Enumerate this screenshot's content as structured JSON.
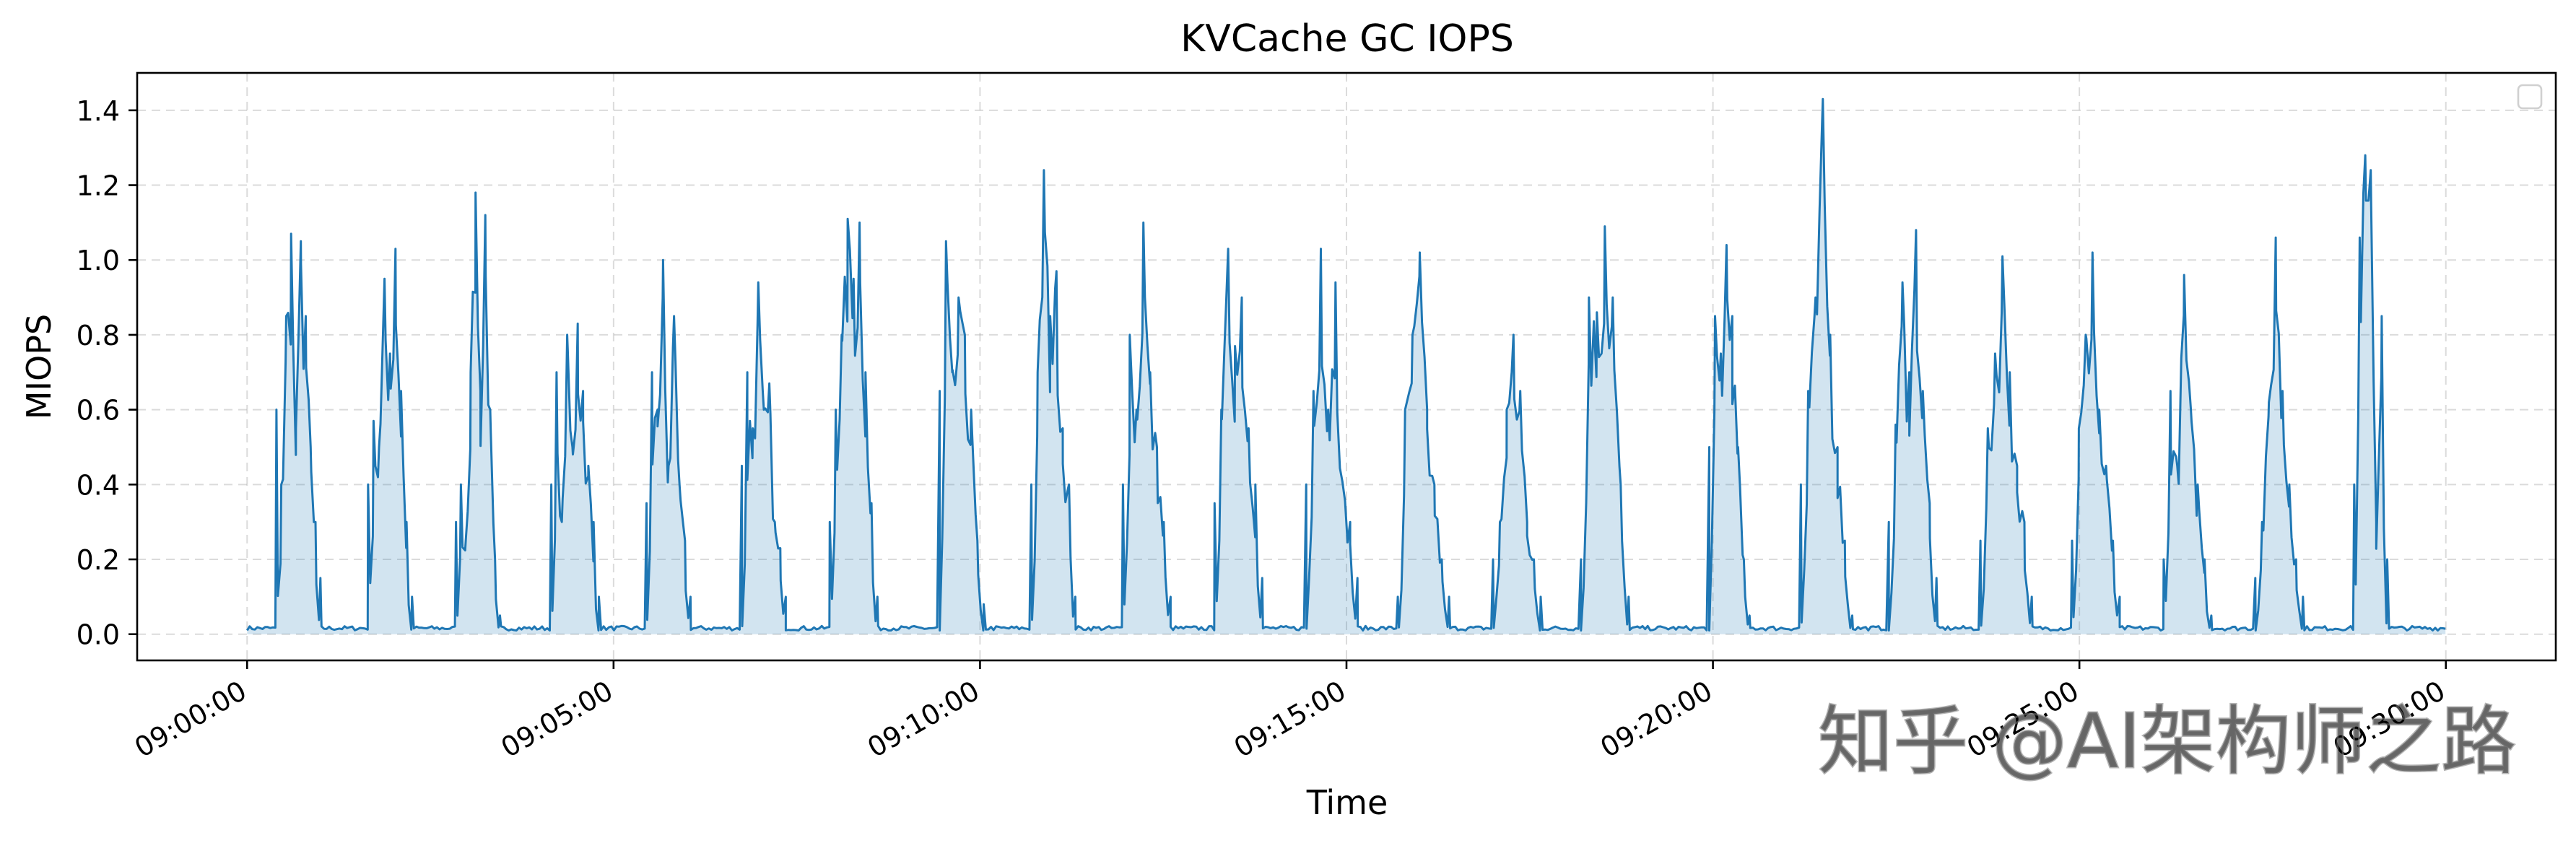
{
  "chart_data": {
    "type": "area",
    "title": "KVCache GC IOPS",
    "xlabel": "Time",
    "ylabel": "MIOPS",
    "grid": true,
    "legend": "top-right",
    "legend_entries": [],
    "xlim_minutes": [
      -1.5,
      31.5
    ],
    "ylim": [
      -0.07,
      1.5
    ],
    "x_tick_minutes": [
      0,
      5,
      10,
      15,
      20,
      25,
      30
    ],
    "x_tick_labels": [
      "09:00:00",
      "09:05:00",
      "09:10:00",
      "09:15:00",
      "09:20:00",
      "09:25:00",
      "09:30:00"
    ],
    "y_ticks": [
      0.0,
      0.2,
      0.4,
      0.6,
      0.8,
      1.0,
      1.2,
      1.4
    ],
    "y_tick_labels": [
      "0.0",
      "0.2",
      "0.4",
      "0.6",
      "0.8",
      "1.0",
      "1.2",
      "1.4"
    ],
    "series": [
      {
        "name": "KVCache GC IOPS",
        "color": "#1f77b4",
        "fill_color": "#1f77b4",
        "fill_opacity": 0.2,
        "bursts": [
          {
            "start_min": 0.4,
            "end_min": 1.0,
            "peaks": [
              0.6,
              0.4,
              0.85,
              1.07,
              0.55,
              1.05,
              0.85,
              0.5,
              0.3,
              0.15
            ]
          },
          {
            "start_min": 1.65,
            "end_min": 2.25,
            "peaks": [
              0.4,
              0.57,
              0.5,
              0.95,
              0.75,
              1.03,
              0.65,
              0.3,
              0.1
            ]
          },
          {
            "start_min": 2.85,
            "end_min": 3.45,
            "peaks": [
              0.3,
              0.4,
              0.25,
              0.7,
              1.18,
              0.65,
              1.12,
              0.6,
              0.2,
              0.05
            ]
          },
          {
            "start_min": 4.15,
            "end_min": 4.8,
            "peaks": [
              0.4,
              0.7,
              0.3,
              0.8,
              0.5,
              0.83,
              0.65,
              0.45,
              0.3,
              0.1
            ]
          },
          {
            "start_min": 5.45,
            "end_min": 6.05,
            "peaks": [
              0.35,
              0.7,
              0.6,
              1.0,
              0.45,
              0.85,
              0.4,
              0.25,
              0.1
            ]
          },
          {
            "start_min": 6.75,
            "end_min": 7.35,
            "peaks": [
              0.45,
              0.7,
              0.55,
              0.94,
              0.6,
              0.67,
              0.3,
              0.23,
              0.1
            ]
          },
          {
            "start_min": 7.95,
            "end_min": 8.6,
            "peaks": [
              0.3,
              0.6,
              0.8,
              1.11,
              0.95,
              1.1,
              0.7,
              0.35,
              0.1
            ]
          },
          {
            "start_min": 9.45,
            "end_min": 10.05,
            "peaks": [
              0.65,
              1.05,
              0.7,
              0.9,
              0.8,
              0.6,
              0.25,
              0.08
            ]
          },
          {
            "start_min": 10.7,
            "end_min": 11.3,
            "peaks": [
              0.4,
              0.7,
              1.24,
              0.85,
              0.97,
              0.55,
              0.4,
              0.1
            ]
          },
          {
            "start_min": 11.95,
            "end_min": 12.6,
            "peaks": [
              0.4,
              0.8,
              0.6,
              1.1,
              0.7,
              0.5,
              0.3,
              0.1
            ]
          },
          {
            "start_min": 13.2,
            "end_min": 13.85,
            "peaks": [
              0.35,
              0.6,
              1.03,
              0.77,
              0.9,
              0.55,
              0.4,
              0.15
            ]
          },
          {
            "start_min": 14.45,
            "end_min": 15.15,
            "peaks": [
              0.4,
              0.65,
              1.03,
              0.6,
              0.94,
              0.4,
              0.3,
              0.15
            ]
          },
          {
            "start_min": 15.7,
            "end_min": 16.4,
            "peaks": [
              0.1,
              0.6,
              0.8,
              1.02,
              0.6,
              0.4,
              0.2,
              0.1
            ]
          },
          {
            "start_min": 17.0,
            "end_min": 17.65,
            "peaks": [
              0.2,
              0.3,
              0.6,
              0.8,
              0.65,
              0.3,
              0.2,
              0.1
            ]
          },
          {
            "start_min": 18.2,
            "end_min": 18.85,
            "peaks": [
              0.2,
              0.9,
              0.86,
              1.09,
              0.9,
              0.4,
              0.1
            ]
          },
          {
            "start_min": 19.95,
            "end_min": 20.5,
            "peaks": [
              0.5,
              0.85,
              0.75,
              1.04,
              0.85,
              0.5,
              0.2,
              0.05
            ]
          },
          {
            "start_min": 21.2,
            "end_min": 21.9,
            "peaks": [
              0.4,
              0.65,
              0.9,
              1.43,
              0.8,
              0.5,
              0.25,
              0.05
            ]
          },
          {
            "start_min": 22.4,
            "end_min": 23.05,
            "peaks": [
              0.3,
              0.56,
              0.94,
              0.7,
              1.08,
              0.65,
              0.35,
              0.15
            ]
          },
          {
            "start_min": 23.65,
            "end_min": 24.35,
            "peaks": [
              0.25,
              0.55,
              0.75,
              1.01,
              0.7,
              0.45,
              0.3,
              0.1
            ]
          },
          {
            "start_min": 24.9,
            "end_min": 25.55,
            "peaks": [
              0.25,
              0.55,
              0.8,
              1.02,
              0.6,
              0.45,
              0.25,
              0.1
            ]
          },
          {
            "start_min": 26.15,
            "end_min": 26.8,
            "peaks": [
              0.2,
              0.65,
              0.45,
              0.96,
              0.6,
              0.4,
              0.2,
              0.05
            ]
          },
          {
            "start_min": 27.4,
            "end_min": 28.05,
            "peaks": [
              0.15,
              0.3,
              0.62,
              1.06,
              0.65,
              0.4,
              0.2,
              0.1
            ]
          },
          {
            "start_min": 28.75,
            "end_min": 29.2,
            "peaks": [
              0.4,
              1.06,
              1.28,
              1.24,
              0.3,
              0.85,
              0.2
            ]
          }
        ],
        "baseline": 0.01
      }
    ]
  },
  "watermark": "知乎 @AI架构师之路"
}
